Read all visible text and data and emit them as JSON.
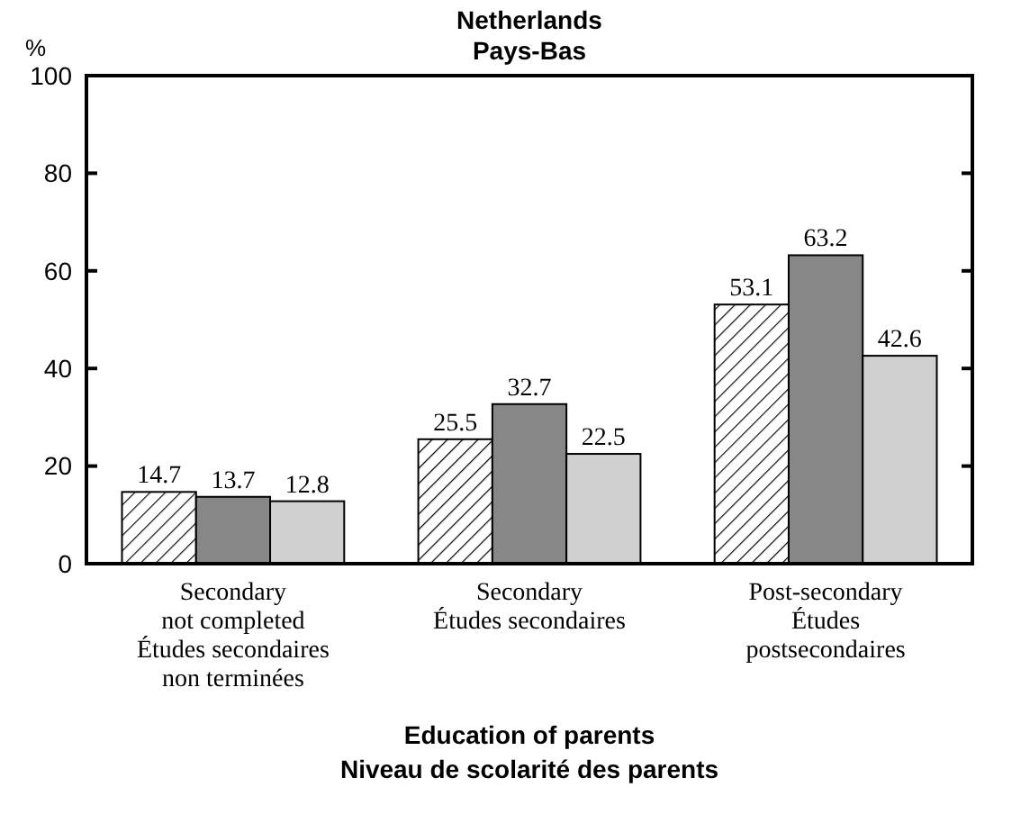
{
  "chart_data": {
    "type": "bar",
    "title": "Netherlands\nPays-Bas",
    "ylabel": "%",
    "xlabel": "Education of parents\nNiveau de scolarité des parents",
    "categories": [
      "Secondary\nnot completed\nÉtudes secondaires\nnon terminées",
      "Secondary\nÉtudes secondaires",
      "Post-secondary\nÉtudes\npostsecondaires"
    ],
    "series": [
      {
        "color": "#000000",
        "values": [
          14.7,
          25.5,
          53.1
        ]
      },
      {
        "color": "#878787",
        "values": [
          13.7,
          32.7,
          63.2
        ]
      },
      {
        "color": "#d0d0d0",
        "values": [
          12.8,
          22.5,
          42.6
        ]
      }
    ],
    "ylim": [
      0,
      100
    ],
    "yticks": [
      0,
      20,
      40,
      60,
      80,
      100
    ],
    "grid": false,
    "data_labels": true
  }
}
